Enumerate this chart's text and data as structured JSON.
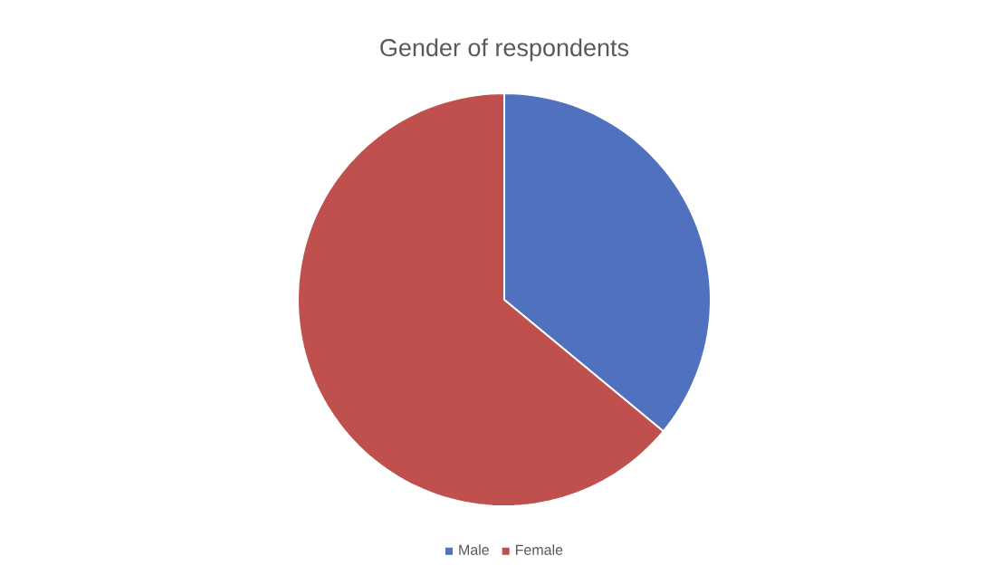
{
  "chart_data": {
    "type": "pie",
    "title": "Gender of respondents",
    "categories": [
      "Male",
      "Female"
    ],
    "values": [
      36,
      64
    ],
    "colors": [
      "#5071be",
      "#c0504d"
    ],
    "legend": "bottom"
  }
}
